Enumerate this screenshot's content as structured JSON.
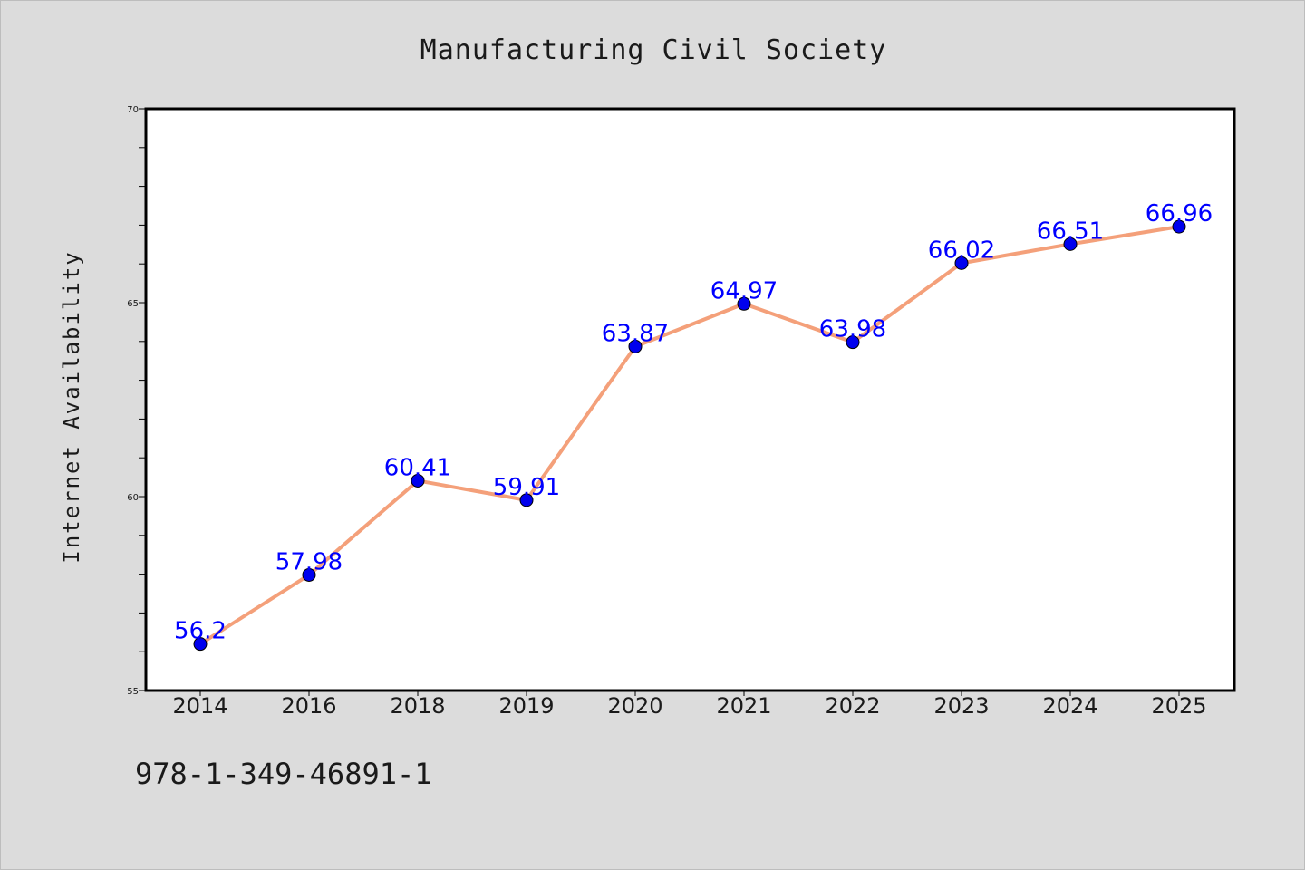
{
  "chart_data": {
    "type": "line",
    "title": "Manufacturing Civil Society",
    "xlabel": "",
    "ylabel": "Internet Availability",
    "categories": [
      "2014",
      "2016",
      "2018",
      "2019",
      "2020",
      "2021",
      "2022",
      "2023",
      "2024",
      "2025"
    ],
    "series": [
      {
        "values": [
          56.2,
          57.98,
          60.41,
          59.91,
          63.87,
          64.97,
          63.98,
          66.02,
          66.51,
          66.96
        ],
        "labels": [
          "56.2",
          "57.98",
          "60.41",
          "59.91",
          "63.87",
          "64.97",
          "63.98",
          "66.02",
          "66.51",
          "66.96"
        ],
        "line_color": "#f4a07a",
        "marker_color": "#0000ee"
      }
    ],
    "ylim": [
      55,
      70
    ],
    "yticks": [
      "55",
      "60",
      "65",
      "70"
    ],
    "grid": false,
    "legend": "none"
  },
  "footer": {
    "isbn": "978-1-349-46891-1"
  },
  "colors": {
    "background": "#dcdcdc",
    "plot_background": "#ffffff",
    "label_color": "#0000ff"
  }
}
